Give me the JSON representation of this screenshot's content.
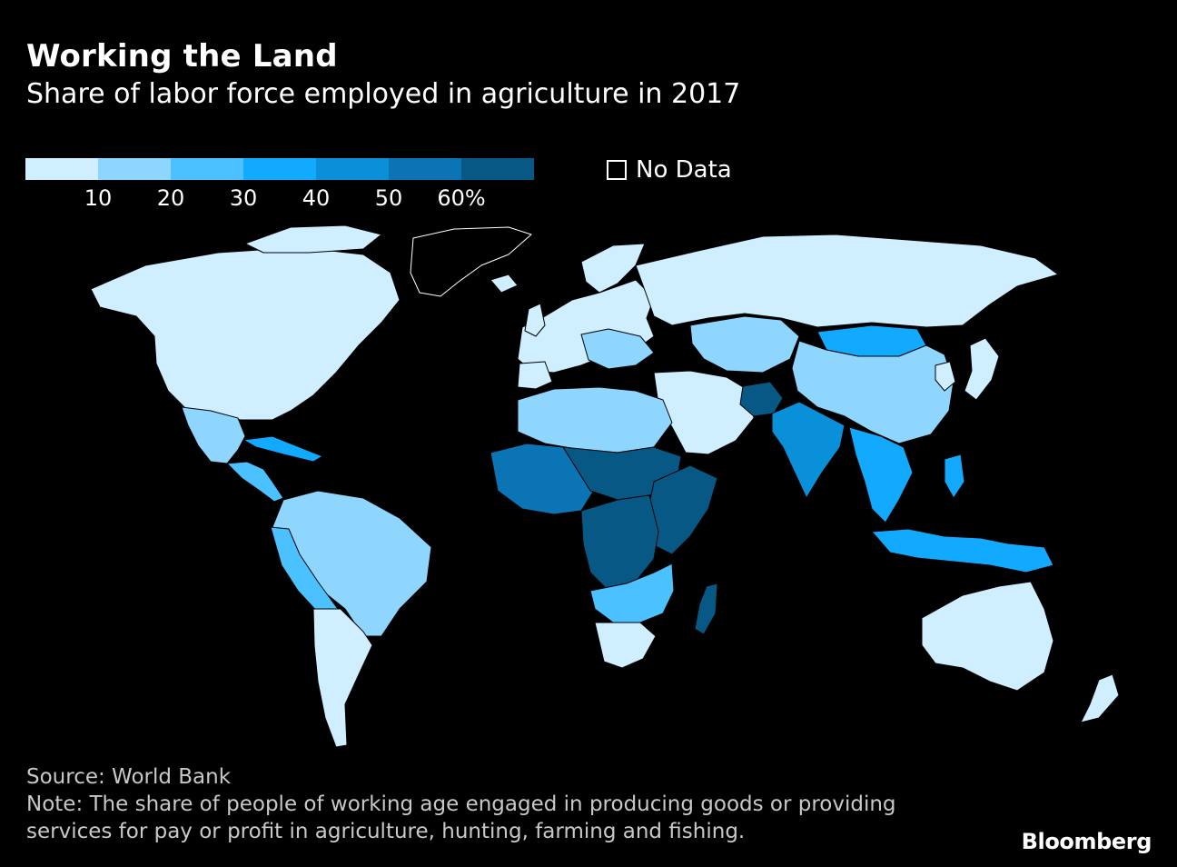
{
  "header": {
    "title": "Working the Land",
    "subtitle": "Share of labor force employed in agriculture in 2017"
  },
  "legend": {
    "colors": [
      "#cfeeff",
      "#8fd6ff",
      "#4cc1ff",
      "#12aaff",
      "#0a90d8",
      "#0a74b5",
      "#085885"
    ],
    "ticks": [
      "10",
      "20",
      "30",
      "40",
      "50",
      "60%"
    ],
    "no_data_label": "No Data"
  },
  "map": {
    "region_levels": {
      "greenland": "no_data",
      "north_america": 0,
      "mexico": 1,
      "central_america": 2,
      "caribbean": 3,
      "south_america": 1,
      "andes": 2,
      "southern_cone": 0,
      "europe": 0,
      "eastern_europe": 1,
      "russia": 0,
      "central_asia": 1,
      "mongolia": 3,
      "china": 1,
      "korea": 0,
      "japan": 0,
      "middle_east": 0,
      "afghanistan": 6,
      "india": 4,
      "southeast_asia": 3,
      "indonesia": 3,
      "australia": 0,
      "new_zealand": 0,
      "north_africa": 1,
      "west_africa": 5,
      "sahel": 6,
      "east_africa": 6,
      "central_africa": 6,
      "southern_africa": 2,
      "south_africa": 0,
      "madagascar": 6
    }
  },
  "footer": {
    "source": "Source: World Bank",
    "note_line1": "Note: The share of people of working age engaged in producing goods or providing",
    "note_line2": "services for pay or profit in agriculture, hunting, farming and fishing."
  },
  "brand": "Bloomberg"
}
